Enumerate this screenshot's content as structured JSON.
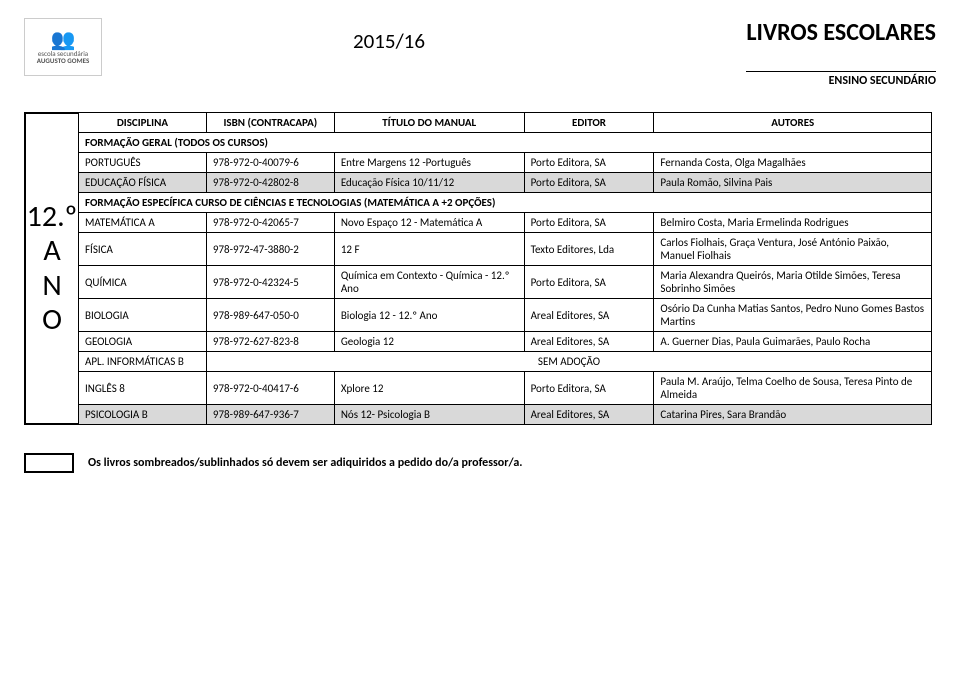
{
  "header": {
    "logo_lines": [
      "escola secundária",
      "AUGUSTO GOMES"
    ],
    "year": "2015/16",
    "title": "LIVROS ESCOLARES",
    "subtitle": "ENSINO SECUNDÁRIO"
  },
  "grade": {
    "num": "12.º",
    "l1": "A",
    "l2": "N",
    "l3": "O"
  },
  "cols": {
    "disciplina": "DISCIPLINA",
    "isbn": "ISBN (CONTRACAPA)",
    "titulo": "TÍTULO DO MANUAL",
    "editor": "EDITOR",
    "autores": "AUTORES"
  },
  "sections": {
    "geral": "FORMAÇÃO GERAL (TODOS OS CURSOS)",
    "espec": "FORMAÇÃO ESPECÍFICA CURSO DE CIÊNCIAS E TECNOLOGIAS (MATEMÁTICA A +2 OPÇÕES)"
  },
  "rows": {
    "portugues": {
      "disc": "PORTUGUÊS",
      "isbn": "978-972-0-40079-6",
      "titulo": "Entre Margens 12 -Português",
      "editor": "Porto Editora, SA",
      "aut": "Fernanda Costa, Olga Magalhães"
    },
    "edfisica": {
      "disc": "EDUCAÇÃO FÍSICA",
      "isbn": "978-972-0-42802-8",
      "titulo": "Educação Física 10/11/12",
      "editor": "Porto Editora, SA",
      "aut": "Paula Romão, Silvina Pais"
    },
    "mat": {
      "disc": "MATEMÁTICA A",
      "isbn": "978-972-0-42065-7",
      "titulo": "Novo Espaço 12 - Matemática A",
      "editor": "Porto Editora, SA",
      "aut": "Belmiro Costa, Maria Ermelinda Rodrigues"
    },
    "fisica": {
      "disc": "FÍSICA",
      "isbn": "978-972-47-3880-2",
      "titulo": "12 F",
      "editor": "Texto Editores, Lda",
      "aut": "Carlos Fiolhais, Graça Ventura, José António Paixão, Manuel Fiolhais"
    },
    "quimica": {
      "disc": "QUÍMICA",
      "isbn": "978-972-0-42324-5",
      "titulo": "Química em Contexto - Química - 12.º Ano",
      "editor": "Porto Editora, SA",
      "aut": "Maria Alexandra Queirós, Maria Otilde Simões, Teresa Sobrinho Simões"
    },
    "biologia": {
      "disc": "BIOLOGIA",
      "isbn": "978-989-647-050-0",
      "titulo": "Biologia 12 - 12.º Ano",
      "editor": "Areal Editores, SA",
      "aut": "Osório Da Cunha Matias Santos, Pedro Nuno Gomes Bastos Martins"
    },
    "geologia": {
      "disc": "GEOLOGIA",
      "isbn": "978-972-627-823-8",
      "titulo": "Geologia 12",
      "editor": "Areal Editores, SA",
      "aut": "A. Guerner Dias, Paula Guimarães, Paulo Rocha"
    },
    "aplinf": {
      "disc": "APL. INFORMÁTICAS B",
      "sem": "SEM ADOÇÃO"
    },
    "ingles": {
      "disc": "INGLÊS 8",
      "isbn": "978-972-0-40417-6",
      "titulo": "Xplore 12",
      "editor": "Porto Editora, SA",
      "aut": "Paula M. Araújo, Telma Coelho de Sousa, Teresa Pinto de Almeida"
    },
    "psic": {
      "disc": "PSICOLOGIA B",
      "isbn": "978-989-647-936-7",
      "titulo": "Nós 12- Psicologia B",
      "editor": "Areal Editores, SA",
      "aut": "Catarina Pires, Sara Brandão"
    }
  },
  "footer": "Os livros sombreados/sublinhados só devem ser adiquiridos a pedido do/a professor/a.",
  "colors": {
    "shaded_bg": "#d9d9d9",
    "border": "#000000",
    "text": "#000000"
  }
}
